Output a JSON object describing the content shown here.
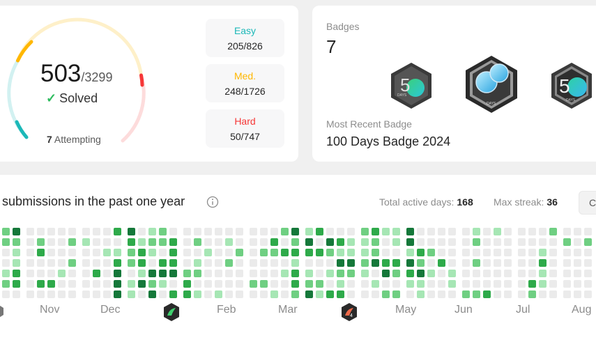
{
  "progress": {
    "solved": "503",
    "total": "/3299",
    "solved_label": "Solved",
    "attempting_count": "7",
    "attempting_label": "Attempting",
    "difficulties": [
      {
        "label": "Easy",
        "value": "205/826",
        "color": "#1cb8b8"
      },
      {
        "label": "Med.",
        "value": "248/1726",
        "color": "#ffb700"
      },
      {
        "label": "Hard",
        "value": "50/747",
        "color": "#f63737"
      }
    ]
  },
  "badges": {
    "label": "Badges",
    "count": "7",
    "items": [
      {
        "icon": "50-days-badge-icon",
        "digit": "5",
        "text": "DAYS"
      },
      {
        "icon": "100-days-badge-icon",
        "digit": "",
        "text": "DAYS"
      },
      {
        "icon": "50-days-badge-icon-2",
        "digit": "5",
        "text": "DAYS"
      }
    ],
    "recent_label": "Most Recent Badge",
    "recent_name": "100 Days Badge 2024"
  },
  "calendar": {
    "title": "submissions in the past one year",
    "active_days_label": "Total active days:",
    "active_days": "168",
    "max_streak_label": "Max streak:",
    "max_streak": "36",
    "button_label": "C",
    "months": [
      "Nov",
      "Dec",
      "Feb",
      "Mar",
      "May",
      "Jun",
      "Jul",
      "Aug"
    ],
    "colors": {
      "empty": "#ebebeb",
      "level1": "#a6e6b4",
      "level2": "#6fcf82",
      "level3": "#2eaa4a",
      "level4": "#15783a"
    }
  }
}
